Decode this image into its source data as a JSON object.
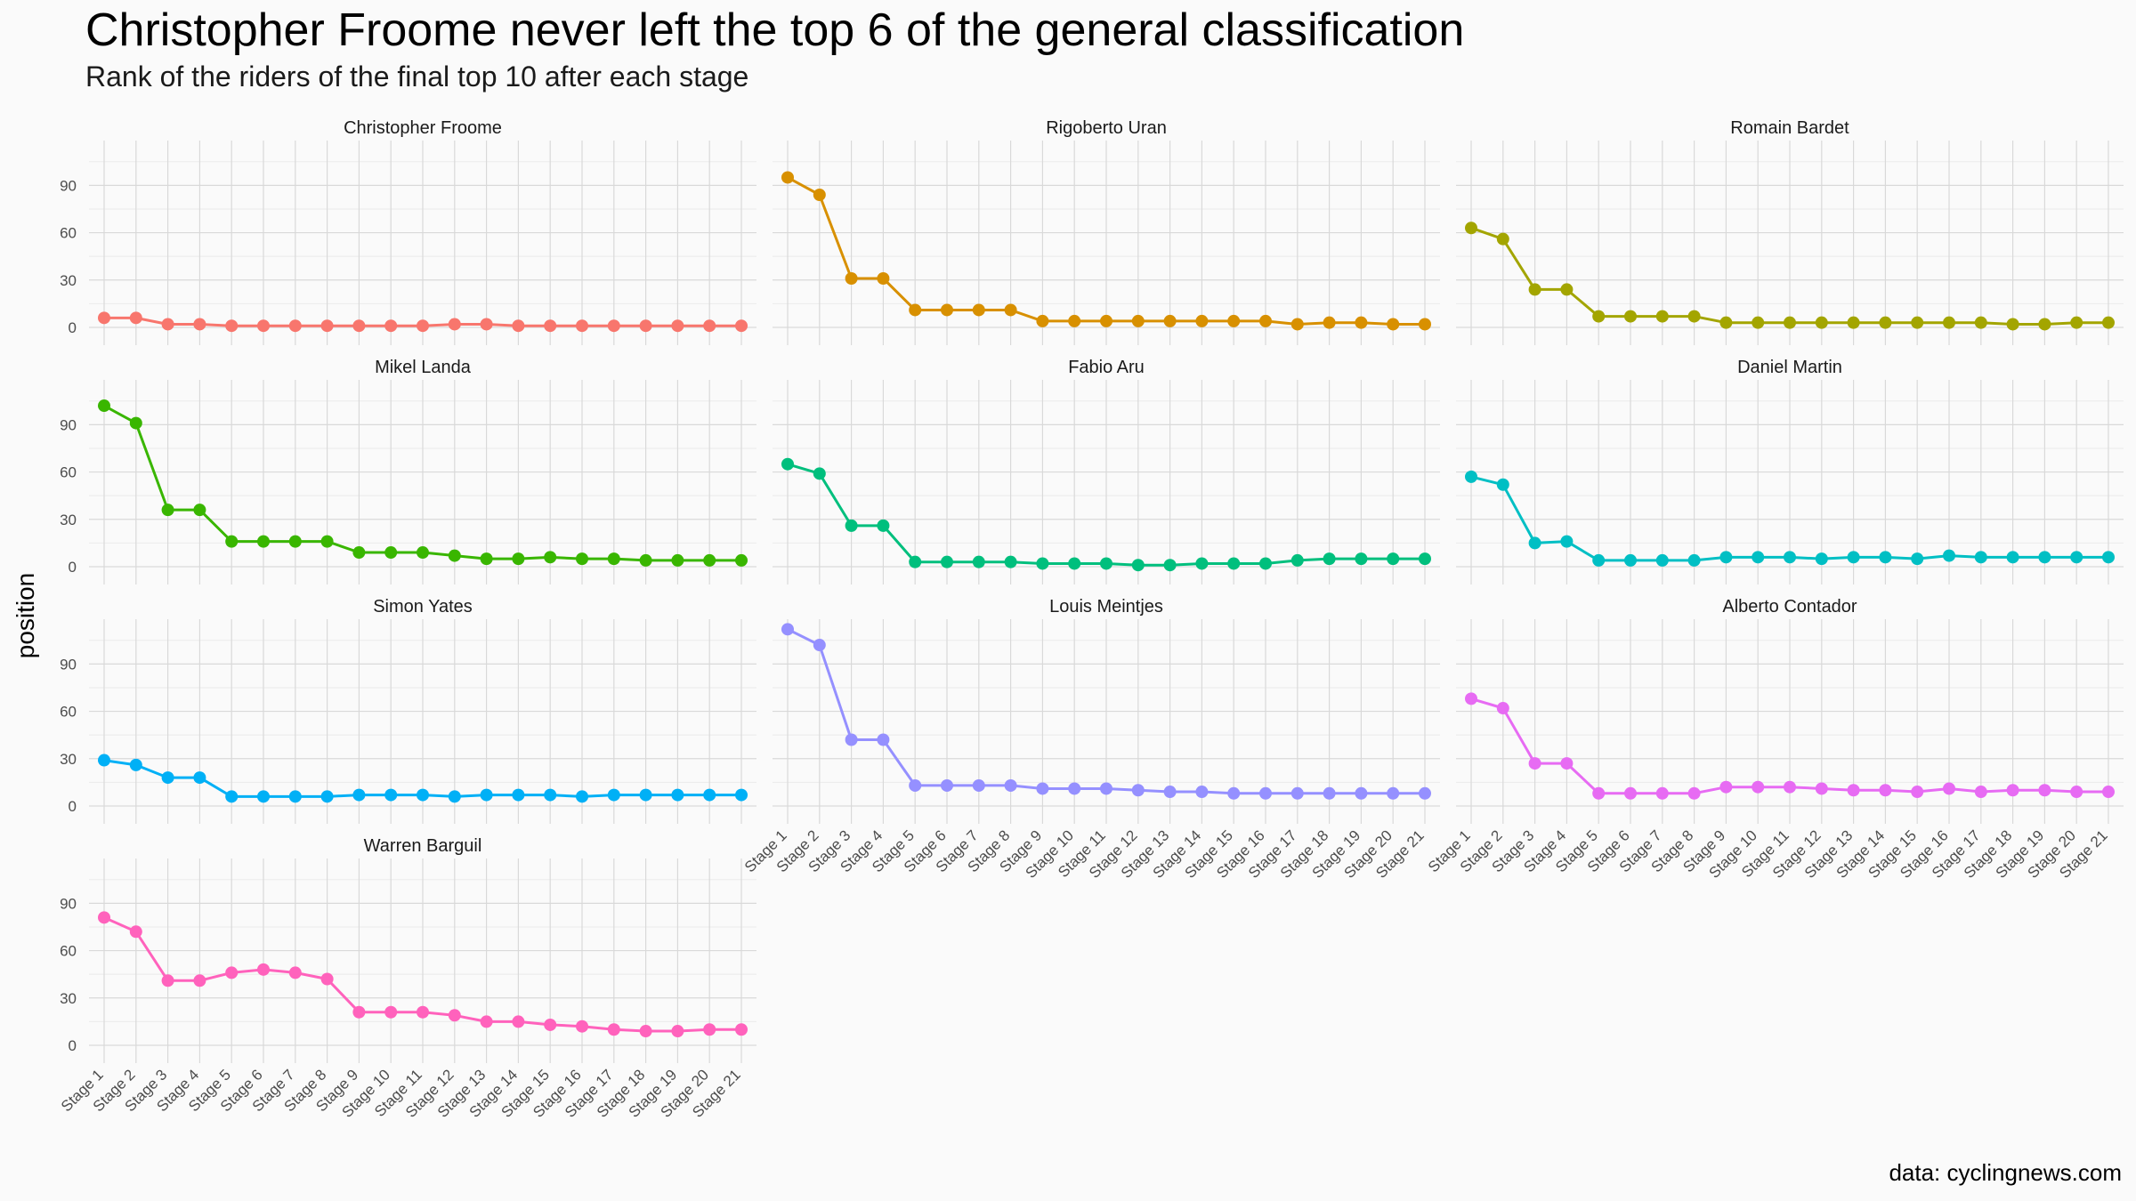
{
  "chart_data": {
    "type": "line",
    "title": "Christopher Froome never left the top 6 of the general classification",
    "subtitle": "Rank of the riders of the final top 10 after each stage",
    "ylabel": "position",
    "caption": "data: cyclingnews.com",
    "ylim": [
      0,
      115
    ],
    "yticks": [
      0,
      30,
      60,
      90
    ],
    "grid": true,
    "x": [
      "Stage 1",
      "Stage 2",
      "Stage 3",
      "Stage 4",
      "Stage 5",
      "Stage 6",
      "Stage 7",
      "Stage 8",
      "Stage 9",
      "Stage 10",
      "Stage 11",
      "Stage 12",
      "Stage 13",
      "Stage 14",
      "Stage 15",
      "Stage 16",
      "Stage 17",
      "Stage 18",
      "Stage 19",
      "Stage 20",
      "Stage 21"
    ],
    "series": [
      {
        "name": "Christopher Froome",
        "color": "#F8766D",
        "values": [
          6,
          6,
          2,
          2,
          1,
          1,
          1,
          1,
          1,
          1,
          1,
          2,
          2,
          1,
          1,
          1,
          1,
          1,
          1,
          1,
          1
        ]
      },
      {
        "name": "Rigoberto Uran",
        "color": "#D89000",
        "values": [
          95,
          84,
          31,
          31,
          11,
          11,
          11,
          11,
          4,
          4,
          4,
          4,
          4,
          4,
          4,
          4,
          2,
          3,
          3,
          2,
          2
        ]
      },
      {
        "name": "Romain Bardet",
        "color": "#A3A500",
        "values": [
          63,
          56,
          24,
          24,
          7,
          7,
          7,
          7,
          3,
          3,
          3,
          3,
          3,
          3,
          3,
          3,
          3,
          2,
          2,
          3,
          3
        ]
      },
      {
        "name": "Mikel Landa",
        "color": "#39B600",
        "values": [
          102,
          91,
          36,
          36,
          16,
          16,
          16,
          16,
          9,
          9,
          9,
          7,
          5,
          5,
          6,
          5,
          5,
          4,
          4,
          4,
          4
        ]
      },
      {
        "name": "Fabio Aru",
        "color": "#00BF7D",
        "values": [
          65,
          59,
          26,
          26,
          3,
          3,
          3,
          3,
          2,
          2,
          2,
          1,
          1,
          2,
          2,
          2,
          4,
          5,
          5,
          5,
          5
        ]
      },
      {
        "name": "Daniel Martin",
        "color": "#00BFC4",
        "values": [
          57,
          52,
          15,
          16,
          4,
          4,
          4,
          4,
          6,
          6,
          6,
          5,
          6,
          6,
          5,
          7,
          6,
          6,
          6,
          6,
          6
        ]
      },
      {
        "name": "Simon Yates",
        "color": "#00B0F6",
        "values": [
          29,
          26,
          18,
          18,
          6,
          6,
          6,
          6,
          7,
          7,
          7,
          6,
          7,
          7,
          7,
          6,
          7,
          7,
          7,
          7,
          7
        ]
      },
      {
        "name": "Louis Meintjes",
        "color": "#9590FF",
        "values": [
          112,
          102,
          42,
          42,
          13,
          13,
          13,
          13,
          11,
          11,
          11,
          10,
          9,
          9,
          8,
          8,
          8,
          8,
          8,
          8,
          8
        ]
      },
      {
        "name": "Alberto Contador",
        "color": "#E76BF3",
        "values": [
          68,
          62,
          27,
          27,
          8,
          8,
          8,
          8,
          12,
          12,
          12,
          11,
          10,
          10,
          9,
          11,
          9,
          10,
          10,
          9,
          9
        ]
      },
      {
        "name": "Warren Barguil",
        "color": "#FF62BC",
        "values": [
          81,
          72,
          41,
          41,
          46,
          48,
          46,
          42,
          21,
          21,
          21,
          19,
          15,
          15,
          13,
          12,
          10,
          9,
          9,
          10,
          10
        ]
      }
    ]
  }
}
